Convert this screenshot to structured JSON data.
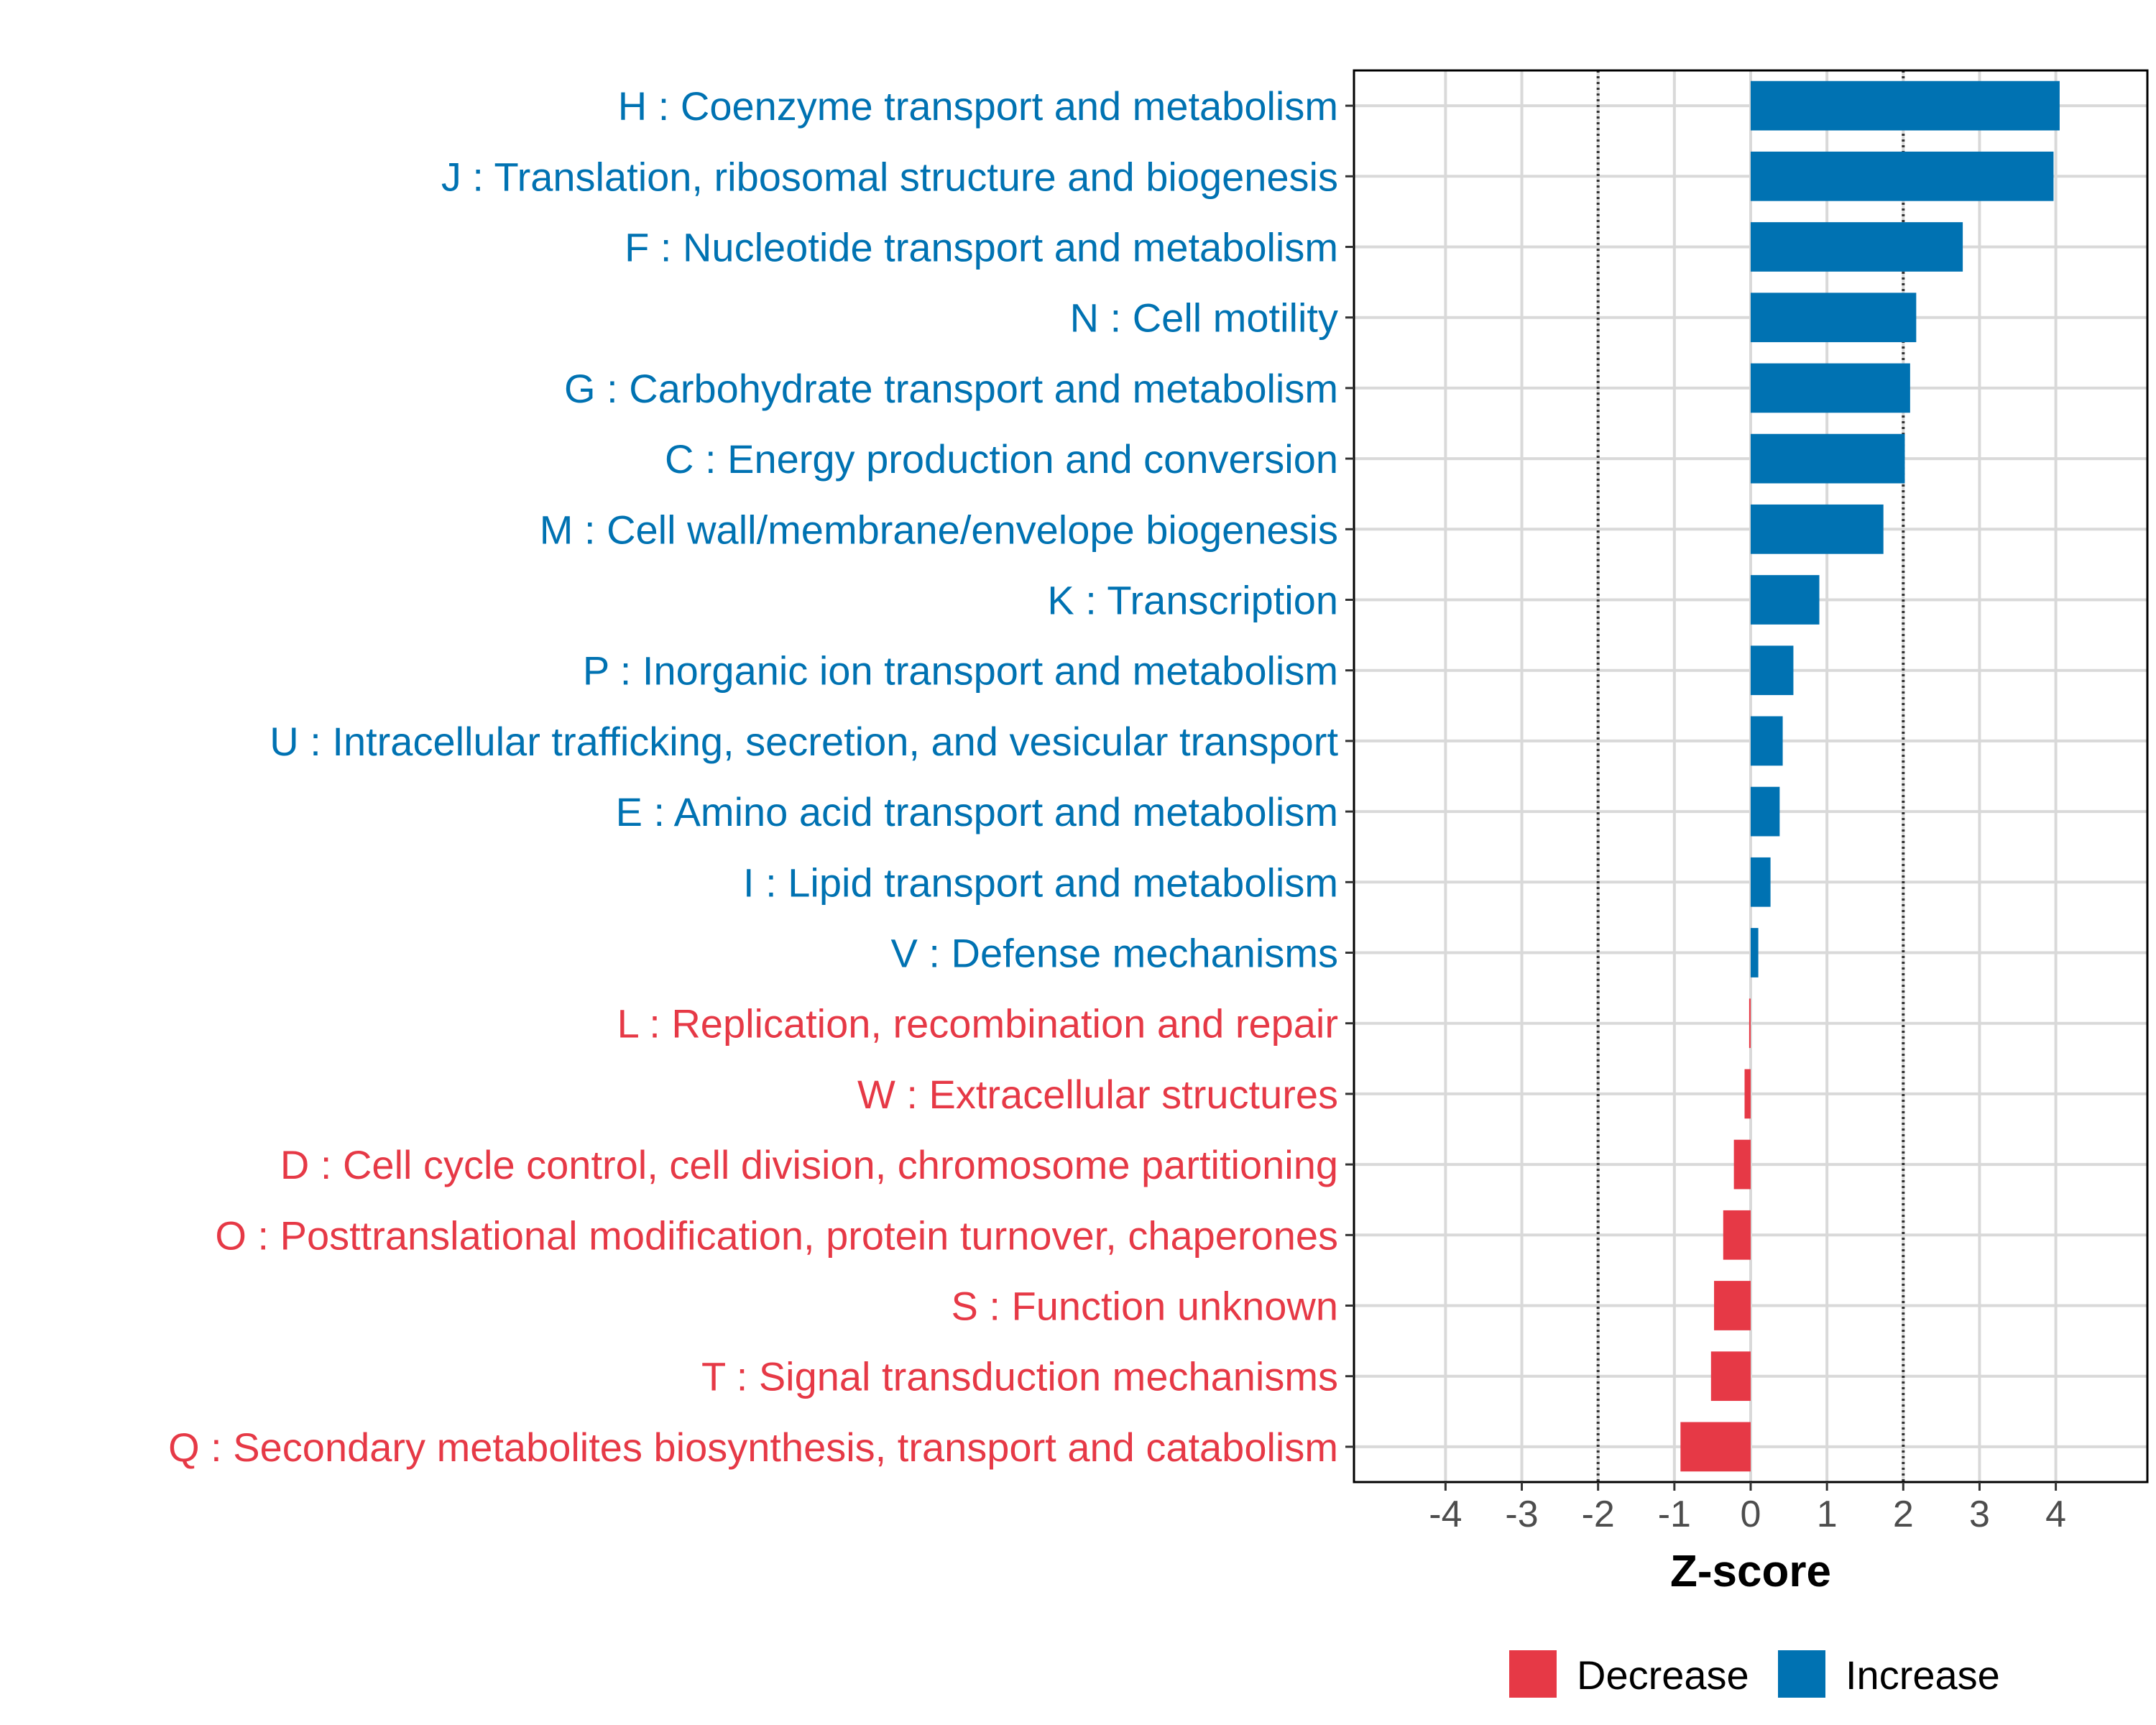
{
  "chart_data": {
    "type": "bar",
    "orientation": "horizontal",
    "title": "",
    "xlabel": "Z-score",
    "ylabel": "",
    "xlim": [
      -5.2,
      5.2
    ],
    "x_ticks": [
      -4,
      -3,
      -2,
      -1,
      0,
      1,
      2,
      3,
      4
    ],
    "reference_lines": [
      -2,
      2
    ],
    "grid": true,
    "legend_position": "bottom",
    "legend": [
      {
        "key": "decrease",
        "label": "Decrease",
        "color": "#E63946"
      },
      {
        "key": "increase",
        "label": "Increase",
        "color": "#0072B2"
      }
    ],
    "categories": [
      "H : Coenzyme transport and metabolism",
      "J : Translation, ribosomal structure and biogenesis",
      "F : Nucleotide transport and metabolism",
      "N : Cell motility",
      "G : Carbohydrate transport and metabolism",
      "C : Energy production and conversion",
      "M : Cell wall/membrane/envelope biogenesis",
      "K : Transcription",
      "P : Inorganic ion transport and metabolism",
      "U : Intracellular trafficking, secretion, and vesicular transport",
      "E : Amino acid transport and metabolism",
      "I : Lipid transport and metabolism",
      "V : Defense mechanisms",
      "L : Replication, recombination and repair",
      "W : Extracellular structures",
      "D : Cell cycle control, cell division, chromosome partitioning",
      "O : Posttranslational modification, protein turnover, chaperones",
      "S : Function unknown",
      "T : Signal transduction mechanisms",
      "Q : Secondary metabolites biosynthesis, transport and catabolism"
    ],
    "values": [
      4.05,
      3.97,
      2.78,
      2.17,
      2.09,
      2.02,
      1.74,
      0.9,
      0.56,
      0.42,
      0.38,
      0.26,
      0.1,
      -0.02,
      -0.08,
      -0.22,
      -0.36,
      -0.48,
      -0.52,
      -0.92
    ],
    "direction": [
      "increase",
      "increase",
      "increase",
      "increase",
      "increase",
      "increase",
      "increase",
      "increase",
      "increase",
      "increase",
      "increase",
      "increase",
      "increase",
      "decrease",
      "decrease",
      "decrease",
      "decrease",
      "decrease",
      "decrease",
      "decrease"
    ]
  }
}
